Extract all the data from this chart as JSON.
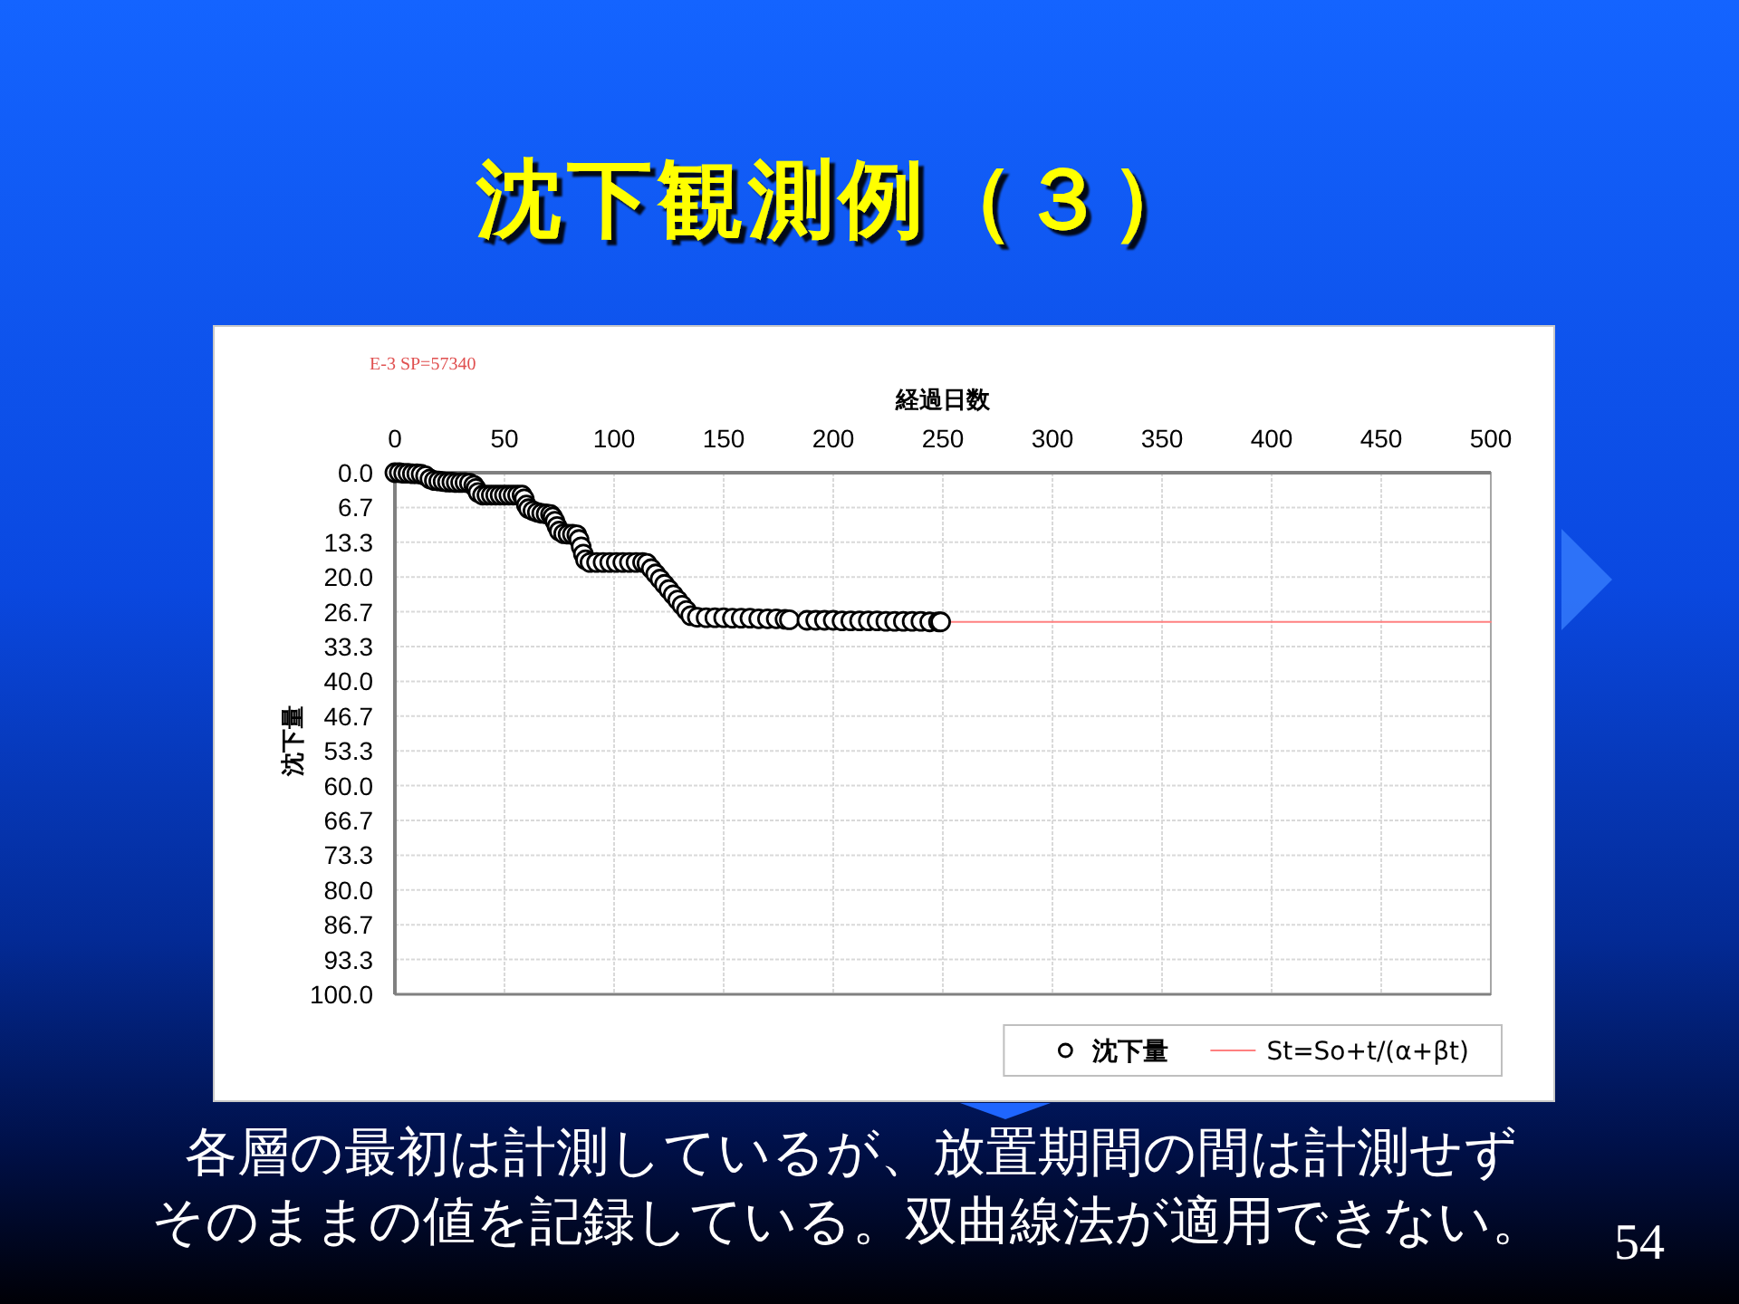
{
  "chart_data": {
    "type": "scatter",
    "title": "沈下観測例（３）",
    "xlabel": "経過日数",
    "ylabel": "沈下量",
    "annotations": [
      "E-3 SP=57340",
      "各層の最初は計測しているが、放置期間の間は計測せず",
      "そのままの値を記録している。双曲線法が適用できない。",
      "54"
    ],
    "xlim": [
      0,
      500
    ],
    "xticks": [
      0,
      50,
      100,
      150,
      200,
      250,
      300,
      350,
      400,
      450,
      500
    ],
    "ylim": [
      100,
      0
    ],
    "yticks": [
      {
        "value": 0,
        "label": "0.0"
      },
      {
        "value": 6.667,
        "label": "6.7"
      },
      {
        "value": 13.333,
        "label": "13.3"
      },
      {
        "value": 20,
        "label": "20.0"
      },
      {
        "value": 26.667,
        "label": "26.7"
      },
      {
        "value": 33.333,
        "label": "33.3"
      },
      {
        "value": 40,
        "label": "40.0"
      },
      {
        "value": 46.667,
        "label": "46.7"
      },
      {
        "value": 53.333,
        "label": "53.3"
      },
      {
        "value": 60,
        "label": "60.0"
      },
      {
        "value": 66.667,
        "label": "66.7"
      },
      {
        "value": 73.333,
        "label": "73.3"
      },
      {
        "value": 80,
        "label": "80.0"
      },
      {
        "value": 86.667,
        "label": "86.7"
      },
      {
        "value": 93.333,
        "label": "93.3"
      },
      {
        "value": 100,
        "label": "100.0"
      }
    ],
    "grid": true,
    "legend": "bottom right",
    "series": [
      {
        "name": "St=So+t/(α+βt)",
        "type": "line",
        "color": "#ff8080",
        "x": [
          249,
          500
        ],
        "values": [
          28.6,
          28.6
        ]
      },
      {
        "name": "沈下量",
        "color": "#000000",
        "marker": "circle",
        "x": [
          0,
          2,
          4,
          6,
          8,
          10,
          12,
          14,
          16,
          18,
          20,
          22,
          24,
          26,
          28,
          30,
          32,
          34,
          36,
          37,
          38,
          40,
          42,
          44,
          46,
          48,
          50,
          52,
          54,
          56,
          58,
          59,
          60,
          61,
          63,
          65,
          67,
          69,
          71,
          72,
          73,
          74,
          75,
          77,
          79,
          81,
          83,
          84,
          85,
          86,
          87,
          89,
          92,
          95,
          98,
          101,
          104,
          107,
          110,
          113,
          115,
          117,
          119,
          121,
          123,
          125,
          127,
          129,
          131,
          133,
          135,
          138,
          142,
          146,
          150,
          154,
          158,
          162,
          166,
          170,
          174,
          178,
          180,
          188,
          192,
          196,
          200,
          204,
          208,
          212,
          216,
          220,
          224,
          228,
          232,
          236,
          240,
          244,
          248,
          249
        ],
        "values": [
          0.0,
          0.0,
          0.1,
          0.1,
          0.2,
          0.2,
          0.3,
          0.6,
          1.2,
          1.5,
          1.6,
          1.7,
          1.8,
          1.8,
          1.9,
          1.9,
          1.9,
          2.0,
          2.4,
          3.0,
          3.8,
          4.3,
          4.3,
          4.3,
          4.3,
          4.3,
          4.3,
          4.3,
          4.3,
          4.3,
          4.3,
          5.0,
          6.2,
          6.9,
          7.3,
          7.6,
          7.8,
          7.9,
          8.0,
          8.5,
          9.3,
          10.3,
          11.2,
          11.7,
          11.8,
          11.8,
          11.9,
          12.8,
          14.2,
          15.6,
          16.7,
          17.2,
          17.2,
          17.2,
          17.2,
          17.2,
          17.2,
          17.2,
          17.2,
          17.2,
          17.4,
          18.4,
          19.4,
          20.4,
          21.4,
          22.4,
          23.4,
          24.4,
          25.4,
          26.4,
          27.4,
          27.7,
          27.8,
          27.8,
          27.8,
          27.9,
          27.9,
          27.9,
          28.0,
          28.0,
          28.0,
          28.1,
          28.2,
          28.3,
          28.3,
          28.3,
          28.3,
          28.4,
          28.4,
          28.4,
          28.4,
          28.4,
          28.5,
          28.5,
          28.5,
          28.5,
          28.5,
          28.6,
          28.6,
          28.6
        ]
      }
    ]
  }
}
